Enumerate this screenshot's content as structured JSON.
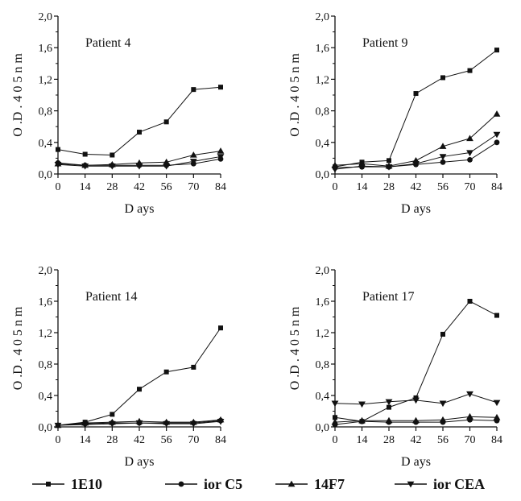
{
  "figure": {
    "legend": [
      {
        "label": "1E10",
        "marker": "square"
      },
      {
        "label": "ior C5",
        "marker": "circle"
      },
      {
        "label": "14F7",
        "marker": "triangle-up"
      },
      {
        "label": "ior CEA",
        "marker": "triangle-down"
      }
    ],
    "line_color": "#111111"
  },
  "chart_data": [
    {
      "type": "line",
      "panel_title": "Patient 4",
      "xlabel": "D ays",
      "ylabel": "O .D . 4 0 5 n m",
      "x": [
        0,
        14,
        28,
        42,
        56,
        70,
        84
      ],
      "x_ticks": [
        "0",
        "14",
        "28",
        "42",
        "56",
        "70",
        "84"
      ],
      "y_ticks": [
        "0,0",
        "0,4",
        "0,8",
        "1,2",
        "1,6",
        "2,0"
      ],
      "ylim": [
        0,
        2.0
      ],
      "series": [
        {
          "name": "1E10",
          "values": [
            0.31,
            0.25,
            0.24,
            0.53,
            0.66,
            1.07,
            1.1
          ]
        },
        {
          "name": "ior C5",
          "values": [
            0.14,
            0.11,
            0.11,
            0.11,
            0.11,
            0.13,
            0.19
          ]
        },
        {
          "name": "14F7",
          "values": [
            0.13,
            0.11,
            0.12,
            0.14,
            0.15,
            0.24,
            0.29
          ]
        },
        {
          "name": "ior CEA",
          "values": [
            0.12,
            0.1,
            0.1,
            0.1,
            0.1,
            0.16,
            0.22
          ]
        }
      ]
    },
    {
      "type": "line",
      "panel_title": "Patient 9",
      "xlabel": "D ays",
      "ylabel": "O .D . 4 0 5 n m",
      "x": [
        0,
        14,
        28,
        42,
        56,
        70,
        84
      ],
      "x_ticks": [
        "0",
        "14",
        "28",
        "42",
        "56",
        "70",
        "84"
      ],
      "y_ticks": [
        "0,0",
        "0,4",
        "0,8",
        "1,2",
        "1,6",
        "2,0"
      ],
      "ylim": [
        0,
        2.0
      ],
      "series": [
        {
          "name": "1E10",
          "values": [
            0.09,
            0.15,
            0.17,
            1.02,
            1.22,
            1.31,
            1.57
          ]
        },
        {
          "name": "ior C5",
          "values": [
            0.08,
            0.09,
            0.09,
            0.12,
            0.15,
            0.18,
            0.4
          ]
        },
        {
          "name": "14F7",
          "values": [
            0.11,
            0.13,
            0.1,
            0.17,
            0.35,
            0.45,
            0.76
          ]
        },
        {
          "name": "ior CEA",
          "values": [
            0.06,
            0.1,
            0.09,
            0.13,
            0.22,
            0.27,
            0.5
          ]
        }
      ]
    },
    {
      "type": "line",
      "panel_title": "Patient 14",
      "xlabel": "D ays",
      "ylabel": "O .D . 4 0 5 n m",
      "x": [
        0,
        14,
        28,
        42,
        56,
        70,
        84
      ],
      "x_ticks": [
        "0",
        "14",
        "28",
        "42",
        "56",
        "70",
        "84"
      ],
      "y_ticks": [
        "0,0",
        "0,4",
        "0,8",
        "1,2",
        "1,6",
        "2,0"
      ],
      "ylim": [
        0,
        2.0
      ],
      "series": [
        {
          "name": "1E10",
          "values": [
            0.02,
            0.06,
            0.16,
            0.48,
            0.7,
            0.76,
            1.26
          ]
        },
        {
          "name": "ior C5",
          "values": [
            0.02,
            0.04,
            0.05,
            0.05,
            0.05,
            0.05,
            0.08
          ]
        },
        {
          "name": "14F7",
          "values": [
            0.02,
            0.05,
            0.06,
            0.07,
            0.06,
            0.06,
            0.09
          ]
        },
        {
          "name": "ior CEA",
          "values": [
            0.02,
            0.03,
            0.04,
            0.05,
            0.04,
            0.04,
            0.07
          ]
        }
      ]
    },
    {
      "type": "line",
      "panel_title": "Patient 17",
      "xlabel": "D ays",
      "ylabel": "O .D . 4 0 5 n m",
      "x": [
        0,
        14,
        28,
        42,
        56,
        70,
        84
      ],
      "x_ticks": [
        "0",
        "14",
        "28",
        "42",
        "56",
        "70",
        "84"
      ],
      "y_ticks": [
        "0,0",
        "0,4",
        "0,8",
        "1,2",
        "1,6",
        "2,0"
      ],
      "ylim": [
        0,
        2.0
      ],
      "series": [
        {
          "name": "1E10",
          "values": [
            0.12,
            0.07,
            0.25,
            0.37,
            1.18,
            1.6,
            1.42
          ]
        },
        {
          "name": "ior C5",
          "values": [
            0.03,
            0.07,
            0.06,
            0.06,
            0.06,
            0.09,
            0.08
          ]
        },
        {
          "name": "14F7",
          "values": [
            0.06,
            0.08,
            0.08,
            0.08,
            0.09,
            0.13,
            0.12
          ]
        },
        {
          "name": "ior CEA",
          "values": [
            0.3,
            0.29,
            0.32,
            0.34,
            0.3,
            0.42,
            0.31
          ]
        }
      ]
    }
  ]
}
